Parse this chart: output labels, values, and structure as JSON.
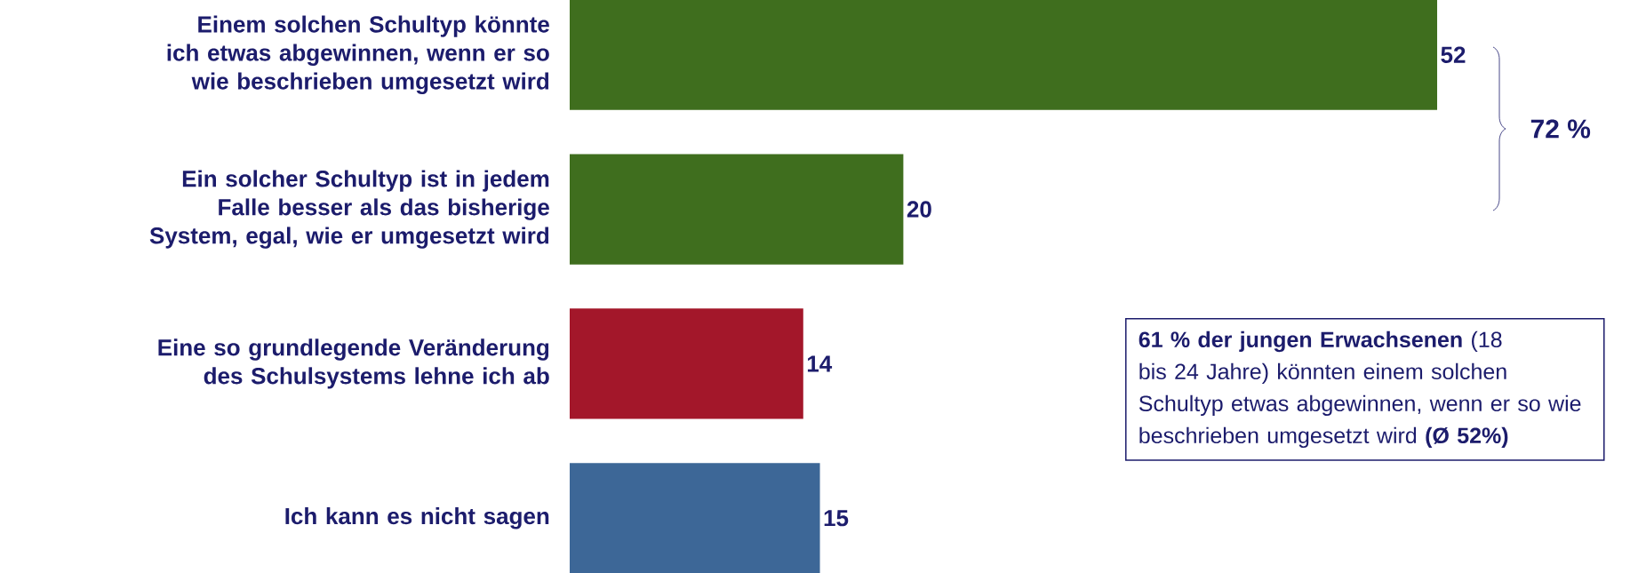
{
  "chart_data": {
    "type": "bar",
    "orientation": "horizontal",
    "categories": [
      "Einem solchen Schultyp könnte ich etwas abgewinnen, wenn er so wie beschrieben umgesetzt wird",
      "Ein solcher Schultyp ist in jedem Falle besser als das bisherige System, egal, wie er umgesetzt wird",
      "Eine so grundlegende Veränderung des Schulsystems lehne ich ab",
      "Ich kann es nicht sagen"
    ],
    "values": [
      52,
      20,
      14,
      15
    ],
    "colors": [
      "#3f6e1e",
      "#3f6e1e",
      "#a3172a",
      "#3d6797"
    ],
    "data_labels": true,
    "tick_labels": "y",
    "annotations": [
      "72 %",
      "**61 % der jungen Erwachsenen** (18 bis 24 Jahre) könnten einem solchen Schultyp etwas abgewinnen, wenn er so wie beschrieben umgesetzt wird **(Ø 52%)**"
    ]
  }
}
